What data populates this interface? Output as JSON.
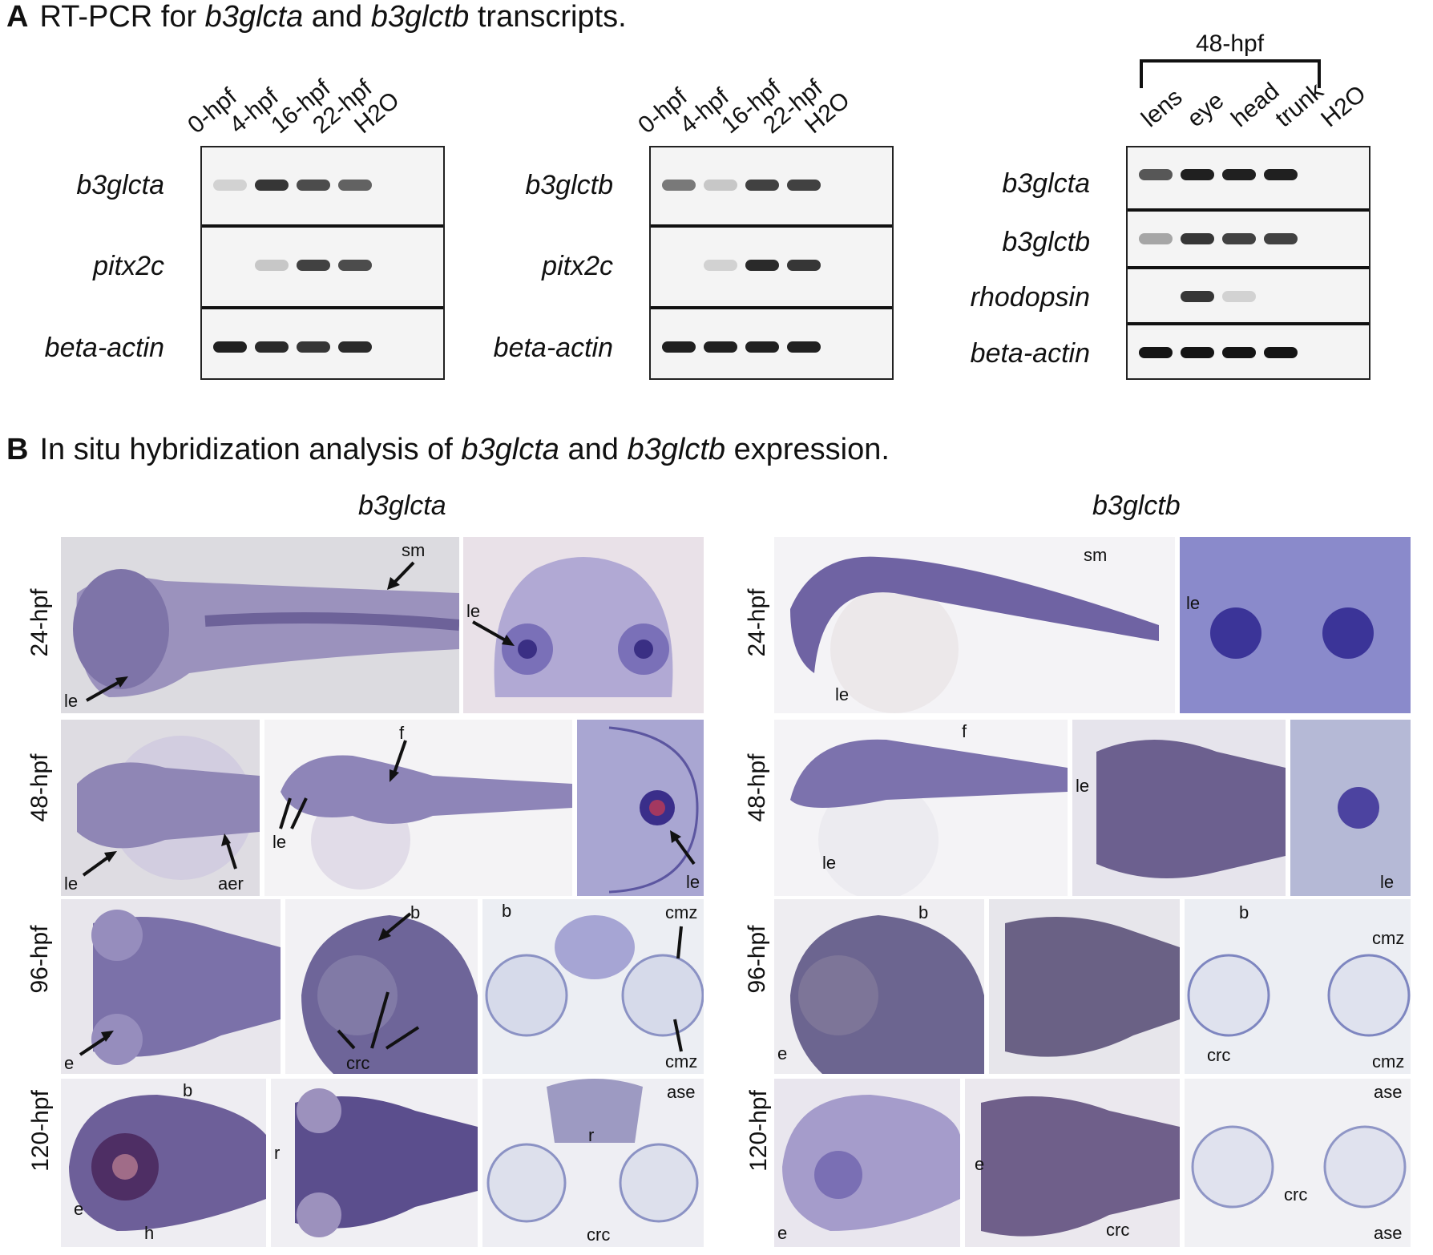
{
  "sectionA": {
    "letter": "A",
    "title_pre": "RT-PCR for ",
    "gene1": "b3glcta",
    "title_mid": " and ",
    "gene2": "b3glctb",
    "title_post": " transcripts."
  },
  "gel1": {
    "lanes": [
      "0-hpf",
      "4-hpf",
      "16-hpf",
      "22-hpf",
      "H2O"
    ],
    "rows": [
      "b3glcta",
      "pitx2c",
      "beta-actin"
    ],
    "bands": [
      [
        0.15,
        0.85,
        0.75,
        0.65,
        0
      ],
      [
        0,
        0.2,
        0.8,
        0.75,
        0
      ],
      [
        0.95,
        0.9,
        0.85,
        0.9,
        0
      ]
    ]
  },
  "gel2": {
    "lanes": [
      "0-hpf",
      "4-hpf",
      "16-hpf",
      "22-hpf",
      "H2O"
    ],
    "rows": [
      "b3glctb",
      "pitx2c",
      "beta-actin"
    ],
    "bands": [
      [
        0.55,
        0.2,
        0.8,
        0.8,
        0
      ],
      [
        0,
        0.15,
        0.9,
        0.85,
        0
      ],
      [
        0.95,
        0.95,
        0.95,
        0.95,
        0
      ]
    ]
  },
  "gel3": {
    "group_label": "48-hpf",
    "lanes": [
      "lens",
      "eye",
      "head",
      "trunk",
      "H2O"
    ],
    "rows": [
      "b3glcta",
      "b3glctb",
      "rhodopsin",
      "beta-actin"
    ],
    "bands": [
      [
        0.7,
        0.95,
        0.95,
        0.95,
        0
      ],
      [
        0.35,
        0.85,
        0.8,
        0.8,
        0
      ],
      [
        0,
        0.85,
        0.15,
        0,
        0
      ],
      [
        1,
        1,
        1,
        1,
        0
      ]
    ]
  },
  "sectionB": {
    "letter": "B",
    "title_pre": "In situ hybridization analysis of ",
    "gene1": "b3glcta",
    "title_mid": " and ",
    "gene2": "b3glctb",
    "title_post": " expression."
  },
  "columns": {
    "left": "b3glcta",
    "right": "b3glctb"
  },
  "stages": [
    "24-hpf",
    "48-hpf",
    "96-hpf",
    "120-hpf"
  ],
  "annotations": {
    "sm": "sm",
    "le": "le",
    "f": "f",
    "aer": "aer",
    "b": "b",
    "e": "e",
    "crc": "crc",
    "cmz": "cmz",
    "r": "r",
    "ase": "ase",
    "h": "h"
  },
  "colors": {
    "stain": "#4b3f8c",
    "background": "#e6e4ea",
    "gel_band": "#222222"
  }
}
